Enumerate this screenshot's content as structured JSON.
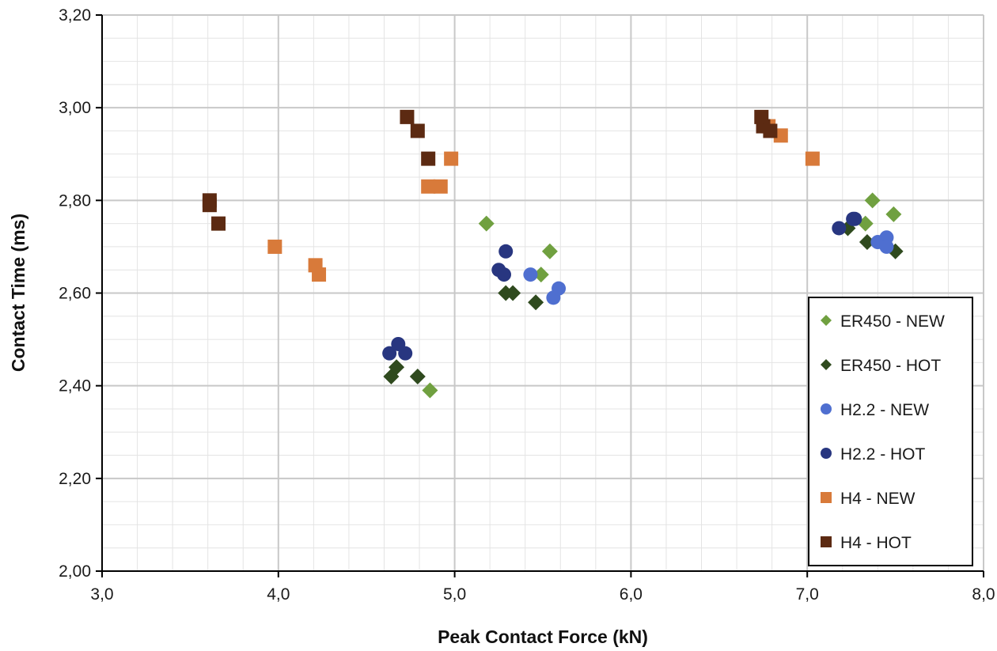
{
  "chart_data": {
    "type": "scatter",
    "title": "",
    "xlabel": "Peak Contact  Force (kN)",
    "ylabel": "Contact  Time (ms)",
    "xlim": [
      3.0,
      8.0
    ],
    "ylim": [
      2.0,
      3.2
    ],
    "xticks": [
      3.0,
      4.0,
      5.0,
      6.0,
      7.0,
      8.0
    ],
    "yticks": [
      2.0,
      2.2,
      2.4,
      2.6,
      2.8,
      3.0,
      3.2
    ],
    "xtick_labels": [
      "3,0",
      "4,0",
      "5,0",
      "6,0",
      "7,0",
      "8,0"
    ],
    "ytick_labels": [
      "2,00",
      "2,20",
      "2,40",
      "2,60",
      "2,80",
      "3,00",
      "3,20"
    ],
    "grid": true,
    "minor_grid": true,
    "legend_position": "bottom-right",
    "series": [
      {
        "name": "ER450 - NEW",
        "marker": "diamond",
        "color": "#70a040",
        "x": [
          5.18,
          5.54,
          5.49,
          4.86,
          7.37,
          7.49,
          7.33
        ],
        "y": [
          2.75,
          2.69,
          2.64,
          2.39,
          2.8,
          2.77,
          2.75
        ]
      },
      {
        "name": "ER450 - HOT",
        "marker": "diamond",
        "color": "#2f4a1e",
        "x": [
          5.29,
          5.33,
          5.46,
          4.64,
          4.67,
          4.79,
          7.23,
          7.34,
          7.5
        ],
        "y": [
          2.6,
          2.6,
          2.58,
          2.42,
          2.44,
          2.42,
          2.74,
          2.71,
          2.69
        ]
      },
      {
        "name": "H2.2 - NEW",
        "marker": "circle",
        "color": "#4f6fd0",
        "x": [
          5.43,
          5.56,
          5.59,
          7.4,
          7.45,
          7.45
        ],
        "y": [
          2.64,
          2.59,
          2.61,
          2.71,
          2.72,
          2.7
        ]
      },
      {
        "name": "H2.2 - HOT",
        "marker": "circle",
        "color": "#283680",
        "x": [
          5.29,
          5.25,
          5.28,
          4.63,
          4.68,
          4.72,
          7.18,
          7.26,
          7.27
        ],
        "y": [
          2.69,
          2.65,
          2.64,
          2.47,
          2.49,
          2.47,
          2.74,
          2.76,
          2.76
        ]
      },
      {
        "name": "H4 - NEW",
        "marker": "square",
        "color": "#d87a3a",
        "x": [
          3.98,
          4.21,
          4.23,
          4.85,
          4.92,
          4.98,
          6.78,
          6.85,
          7.03
        ],
        "y": [
          2.7,
          2.66,
          2.64,
          2.83,
          2.83,
          2.89,
          2.96,
          2.94,
          2.89
        ]
      },
      {
        "name": "H4 - HOT",
        "marker": "square",
        "color": "#5c2a12",
        "x": [
          3.61,
          3.61,
          3.66,
          4.73,
          4.79,
          4.85,
          6.74,
          6.75,
          6.79
        ],
        "y": [
          2.8,
          2.79,
          2.75,
          2.98,
          2.95,
          2.89,
          2.98,
          2.96,
          2.95
        ]
      }
    ]
  }
}
